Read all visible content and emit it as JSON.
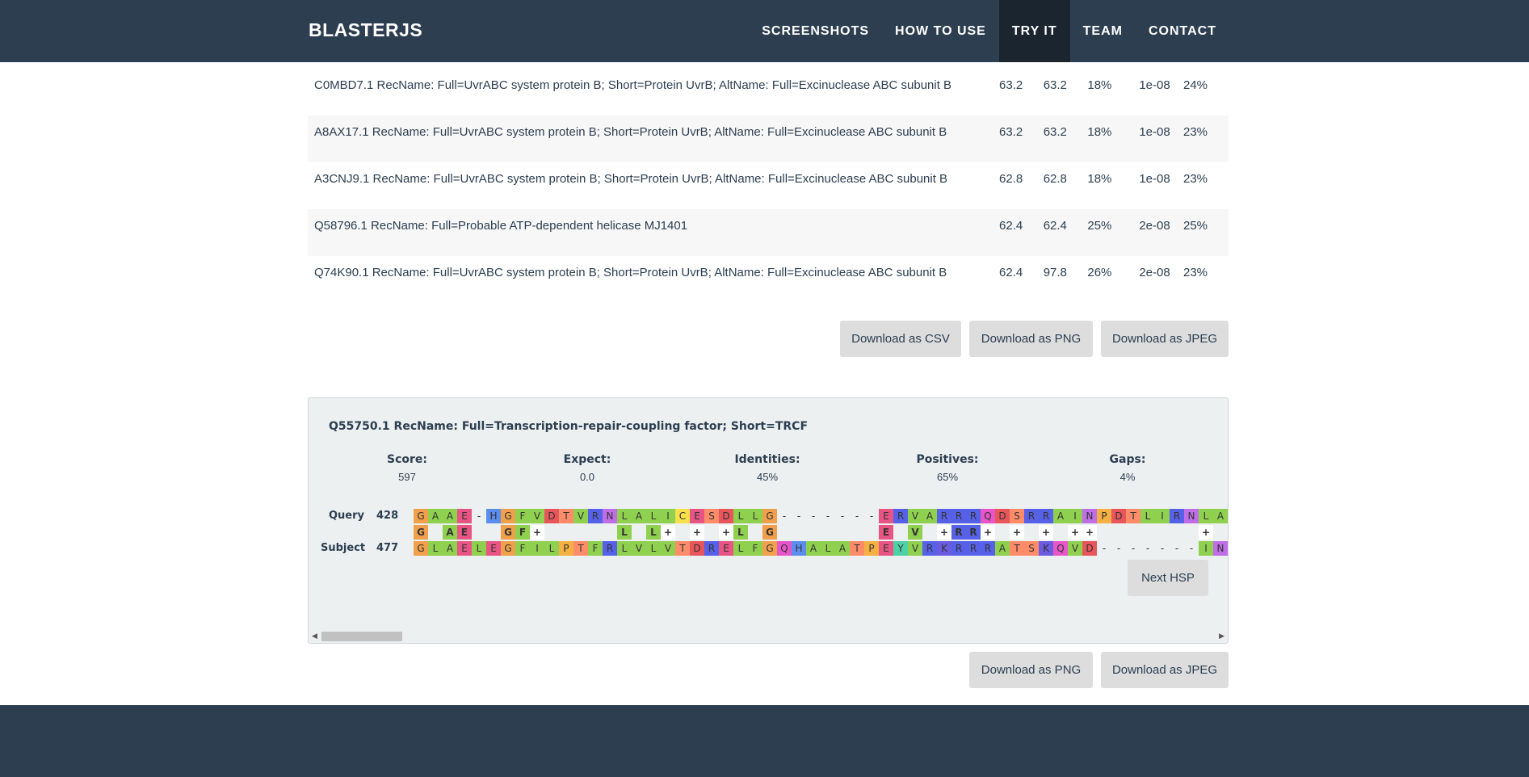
{
  "navbar": {
    "brand": "BLASTERJS",
    "links": [
      "SCREENSHOTS",
      "HOW TO USE",
      "TRY IT",
      "TEAM",
      "CONTACT"
    ]
  },
  "hits": [
    {
      "description": "C0MBD7.1 RecName: Full=UvrABC system protein B; Short=Protein UvrB; AltName: Full=Excinuclease ABC subunit B",
      "max_score": "63.2",
      "total_score": "63.2",
      "query_cover": "18%",
      "evalue": "1e-08",
      "identities": "24%"
    },
    {
      "description": "A8AX17.1 RecName: Full=UvrABC system protein B; Short=Protein UvrB; AltName: Full=Excinuclease ABC subunit B",
      "max_score": "63.2",
      "total_score": "63.2",
      "query_cover": "18%",
      "evalue": "1e-08",
      "identities": "23%"
    },
    {
      "description": "A3CNJ9.1 RecName: Full=UvrABC system protein B; Short=Protein UvrB; AltName: Full=Excinuclease ABC subunit B",
      "max_score": "62.8",
      "total_score": "62.8",
      "query_cover": "18%",
      "evalue": "1e-08",
      "identities": "23%"
    },
    {
      "description": "Q58796.1 RecName: Full=Probable ATP-dependent helicase MJ1401",
      "max_score": "62.4",
      "total_score": "62.4",
      "query_cover": "25%",
      "evalue": "2e-08",
      "identities": "25%"
    },
    {
      "description": "Q74K90.1 RecName: Full=UvrABC system protein B; Short=Protein UvrB; AltName: Full=Excinuclease ABC subunit B",
      "max_score": "62.4",
      "total_score": "97.8",
      "query_cover": "26%",
      "evalue": "2e-08",
      "identities": "23%"
    }
  ],
  "table_buttons": {
    "csv": "Download as CSV",
    "png": "Download as PNG",
    "jpeg": "Download as JPEG"
  },
  "alignment": {
    "title": "Q55750.1 RecName: Full=Transcription-repair-coupling factor; Short=TRCF",
    "stats": [
      {
        "label": "Score:",
        "value": "597"
      },
      {
        "label": "Expect:",
        "value": "0.0"
      },
      {
        "label": "Identities:",
        "value": "45%"
      },
      {
        "label": "Positives:",
        "value": "65%"
      },
      {
        "label": "Gaps:",
        "value": "4%"
      }
    ],
    "query_label": "Query",
    "query_start": "428",
    "subject_label": "Subject",
    "subject_start": "477",
    "query_seq": "GAAE-HGFVDTVRNLALICESDLLG-------ERVARRRQDSRRAINPDTLIRNLA",
    "match_seq": "G AE  GF+     L L+ + +L G       E V +RR+ + + ++       + ",
    "subject_seq": "GLAELEGFILPTFRLVLVTDRELFGQHALATPEYVRKRRRATSKQVD-------IN",
    "next_button": "Next HSP"
  },
  "alignment_buttons": {
    "png": "Download as PNG",
    "jpeg": "Download as JPEG"
  },
  "colors": {
    "navbar": "#2c3e50",
    "nav_active": "#1a252f",
    "button": "#dddddd",
    "panel": "#ecf0f1"
  }
}
